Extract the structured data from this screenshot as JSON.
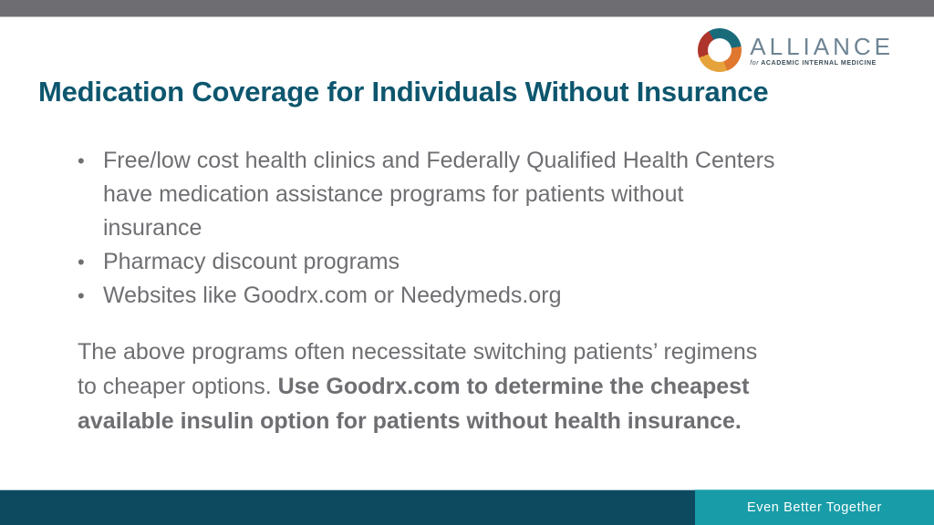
{
  "top_bar": {},
  "logo": {
    "name": "ALLIANCE",
    "tagline_prefix": "for",
    "tagline": "ACADEMIC INTERNAL MEDICINE",
    "ring_colors": [
      "#1a6b7a",
      "#e0772f",
      "#e6a33c",
      "#ae352b"
    ]
  },
  "slide": {
    "title": "Medication Coverage for Individuals Without Insurance",
    "bullets": [
      {
        "lines": [
          "Free/low cost health clinics and Federally Qualified Health Centers",
          "have medication assistance programs for patients without",
          "insurance"
        ]
      },
      {
        "lines": [
          "Pharmacy discount programs"
        ]
      },
      {
        "lines": [
          "Websites like Goodrx.com or Needymeds.org"
        ]
      }
    ],
    "paragraph": {
      "line1_normal": "The above programs often necessitate switching patients’ regimens",
      "line2_normal": "to cheaper options. ",
      "line2_bold": "Use Goodrx.com to determine the cheapest",
      "line3_bold": "available insulin option for patients without health insurance."
    },
    "bullet_glyph": "•"
  },
  "footer": {
    "tagline": "Even Better Together"
  },
  "colors": {
    "title": "#0d566e",
    "body_text": "#6f6e72",
    "top_bar": "#6e6d71",
    "footer_bar": "#0d4a5f",
    "footer_tag_bg": "#189ca8",
    "footer_tag_text": "#ffffff"
  }
}
